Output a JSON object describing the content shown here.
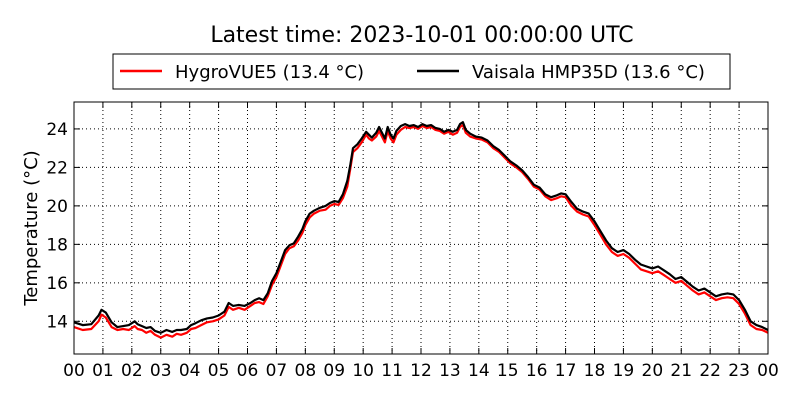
{
  "chart_data": {
    "type": "line",
    "title": "Latest time: 2023-10-01 00:00:00 UTC",
    "ylabel": "Temperature (°C)",
    "xlabel": "",
    "xlim": [
      0,
      24
    ],
    "ylim": [
      12.3,
      25.4
    ],
    "grid": true,
    "legend_position": "top",
    "x_ticks": [
      "00",
      "01",
      "02",
      "03",
      "04",
      "05",
      "06",
      "07",
      "08",
      "09",
      "10",
      "11",
      "12",
      "13",
      "14",
      "15",
      "16",
      "17",
      "18",
      "19",
      "20",
      "21",
      "22",
      "23",
      "00"
    ],
    "y_ticks": [
      14,
      16,
      18,
      20,
      22,
      24
    ],
    "series": [
      {
        "name": "HygroVUE5 (13.4 °C)",
        "color": "#ff0000",
        "points": [
          [
            0,
            13.7
          ],
          [
            0.3,
            13.55
          ],
          [
            0.6,
            13.6
          ],
          [
            0.85,
            14.0
          ],
          [
            0.95,
            14.35
          ],
          [
            1.1,
            14.2
          ],
          [
            1.3,
            13.7
          ],
          [
            1.5,
            13.55
          ],
          [
            1.7,
            13.6
          ],
          [
            1.9,
            13.55
          ],
          [
            2.1,
            13.75
          ],
          [
            2.2,
            13.6
          ],
          [
            2.35,
            13.55
          ],
          [
            2.5,
            13.4
          ],
          [
            2.65,
            13.5
          ],
          [
            2.8,
            13.3
          ],
          [
            3.0,
            13.15
          ],
          [
            3.2,
            13.3
          ],
          [
            3.4,
            13.2
          ],
          [
            3.55,
            13.35
          ],
          [
            3.7,
            13.3
          ],
          [
            3.9,
            13.4
          ],
          [
            4.05,
            13.6
          ],
          [
            4.2,
            13.65
          ],
          [
            4.4,
            13.8
          ],
          [
            4.6,
            13.95
          ],
          [
            4.8,
            14.0
          ],
          [
            5.0,
            14.1
          ],
          [
            5.2,
            14.3
          ],
          [
            5.35,
            14.75
          ],
          [
            5.5,
            14.6
          ],
          [
            5.7,
            14.7
          ],
          [
            5.9,
            14.6
          ],
          [
            6.1,
            14.8
          ],
          [
            6.25,
            14.95
          ],
          [
            6.4,
            15.0
          ],
          [
            6.55,
            14.9
          ],
          [
            6.7,
            15.3
          ],
          [
            6.85,
            15.9
          ],
          [
            7.0,
            16.3
          ],
          [
            7.15,
            16.9
          ],
          [
            7.3,
            17.5
          ],
          [
            7.45,
            17.8
          ],
          [
            7.6,
            17.9
          ],
          [
            7.75,
            18.2
          ],
          [
            7.9,
            18.6
          ],
          [
            8.0,
            19.0
          ],
          [
            8.15,
            19.4
          ],
          [
            8.3,
            19.6
          ],
          [
            8.5,
            19.75
          ],
          [
            8.7,
            19.8
          ],
          [
            8.85,
            20.0
          ],
          [
            9.0,
            20.1
          ],
          [
            9.15,
            20.05
          ],
          [
            9.3,
            20.4
          ],
          [
            9.45,
            21.0
          ],
          [
            9.55,
            21.9
          ],
          [
            9.65,
            22.8
          ],
          [
            9.8,
            23.0
          ],
          [
            9.95,
            23.3
          ],
          [
            10.1,
            23.7
          ],
          [
            10.2,
            23.5
          ],
          [
            10.3,
            23.4
          ],
          [
            10.45,
            23.6
          ],
          [
            10.55,
            23.9
          ],
          [
            10.65,
            23.6
          ],
          [
            10.75,
            23.3
          ],
          [
            10.85,
            23.9
          ],
          [
            10.95,
            23.5
          ],
          [
            11.05,
            23.3
          ],
          [
            11.15,
            23.7
          ],
          [
            11.3,
            23.95
          ],
          [
            11.45,
            24.1
          ],
          [
            11.6,
            24.05
          ],
          [
            11.75,
            24.1
          ],
          [
            11.9,
            24.0
          ],
          [
            12.05,
            24.15
          ],
          [
            12.2,
            24.05
          ],
          [
            12.35,
            24.1
          ],
          [
            12.5,
            23.95
          ],
          [
            12.65,
            23.9
          ],
          [
            12.8,
            23.75
          ],
          [
            12.95,
            23.85
          ],
          [
            13.1,
            23.7
          ],
          [
            13.25,
            23.8
          ],
          [
            13.35,
            24.1
          ],
          [
            13.45,
            24.2
          ],
          [
            13.55,
            23.8
          ],
          [
            13.7,
            23.6
          ],
          [
            13.9,
            23.5
          ],
          [
            14.1,
            23.45
          ],
          [
            14.3,
            23.3
          ],
          [
            14.5,
            23.0
          ],
          [
            14.7,
            22.8
          ],
          [
            14.9,
            22.5
          ],
          [
            15.1,
            22.2
          ],
          [
            15.3,
            22.0
          ],
          [
            15.5,
            21.75
          ],
          [
            15.7,
            21.4
          ],
          [
            15.9,
            21.0
          ],
          [
            16.1,
            20.85
          ],
          [
            16.3,
            20.5
          ],
          [
            16.5,
            20.3
          ],
          [
            16.7,
            20.4
          ],
          [
            16.85,
            20.5
          ],
          [
            17.0,
            20.45
          ],
          [
            17.2,
            20.0
          ],
          [
            17.4,
            19.7
          ],
          [
            17.6,
            19.55
          ],
          [
            17.8,
            19.45
          ],
          [
            18.0,
            19.0
          ],
          [
            18.2,
            18.5
          ],
          [
            18.4,
            18.0
          ],
          [
            18.6,
            17.6
          ],
          [
            18.8,
            17.4
          ],
          [
            19.0,
            17.5
          ],
          [
            19.2,
            17.3
          ],
          [
            19.4,
            17.0
          ],
          [
            19.6,
            16.7
          ],
          [
            19.8,
            16.6
          ],
          [
            20.0,
            16.5
          ],
          [
            20.2,
            16.6
          ],
          [
            20.4,
            16.4
          ],
          [
            20.6,
            16.2
          ],
          [
            20.8,
            16.0
          ],
          [
            21.0,
            16.1
          ],
          [
            21.2,
            15.85
          ],
          [
            21.4,
            15.6
          ],
          [
            21.6,
            15.4
          ],
          [
            21.8,
            15.5
          ],
          [
            22.0,
            15.3
          ],
          [
            22.2,
            15.1
          ],
          [
            22.4,
            15.2
          ],
          [
            22.6,
            15.25
          ],
          [
            22.8,
            15.2
          ],
          [
            23.0,
            14.9
          ],
          [
            23.2,
            14.4
          ],
          [
            23.4,
            13.8
          ],
          [
            23.6,
            13.6
          ],
          [
            23.8,
            13.55
          ],
          [
            24.0,
            13.4
          ]
        ]
      },
      {
        "name": "Vaisala HMP35D (13.6 °C)",
        "color": "#000000",
        "points": [
          [
            0,
            13.95
          ],
          [
            0.3,
            13.8
          ],
          [
            0.6,
            13.85
          ],
          [
            0.85,
            14.3
          ],
          [
            0.95,
            14.6
          ],
          [
            1.1,
            14.45
          ],
          [
            1.3,
            13.95
          ],
          [
            1.5,
            13.7
          ],
          [
            1.7,
            13.75
          ],
          [
            1.9,
            13.8
          ],
          [
            2.1,
            14.0
          ],
          [
            2.2,
            13.85
          ],
          [
            2.35,
            13.75
          ],
          [
            2.5,
            13.65
          ],
          [
            2.65,
            13.7
          ],
          [
            2.8,
            13.5
          ],
          [
            3.0,
            13.4
          ],
          [
            3.2,
            13.55
          ],
          [
            3.4,
            13.45
          ],
          [
            3.55,
            13.55
          ],
          [
            3.7,
            13.55
          ],
          [
            3.9,
            13.6
          ],
          [
            4.05,
            13.8
          ],
          [
            4.2,
            13.9
          ],
          [
            4.4,
            14.05
          ],
          [
            4.6,
            14.15
          ],
          [
            4.8,
            14.2
          ],
          [
            5.0,
            14.3
          ],
          [
            5.2,
            14.5
          ],
          [
            5.35,
            14.95
          ],
          [
            5.5,
            14.8
          ],
          [
            5.7,
            14.85
          ],
          [
            5.9,
            14.8
          ],
          [
            6.1,
            14.95
          ],
          [
            6.25,
            15.1
          ],
          [
            6.4,
            15.2
          ],
          [
            6.55,
            15.1
          ],
          [
            6.7,
            15.45
          ],
          [
            6.85,
            16.1
          ],
          [
            7.0,
            16.5
          ],
          [
            7.15,
            17.1
          ],
          [
            7.3,
            17.7
          ],
          [
            7.45,
            17.95
          ],
          [
            7.6,
            18.05
          ],
          [
            7.75,
            18.4
          ],
          [
            7.9,
            18.8
          ],
          [
            8.0,
            19.2
          ],
          [
            8.15,
            19.6
          ],
          [
            8.3,
            19.75
          ],
          [
            8.5,
            19.9
          ],
          [
            8.7,
            20.0
          ],
          [
            8.85,
            20.15
          ],
          [
            9.0,
            20.25
          ],
          [
            9.15,
            20.2
          ],
          [
            9.3,
            20.6
          ],
          [
            9.45,
            21.3
          ],
          [
            9.55,
            22.1
          ],
          [
            9.65,
            23.0
          ],
          [
            9.8,
            23.2
          ],
          [
            9.95,
            23.5
          ],
          [
            10.1,
            23.85
          ],
          [
            10.2,
            23.7
          ],
          [
            10.3,
            23.55
          ],
          [
            10.45,
            23.8
          ],
          [
            10.55,
            24.1
          ],
          [
            10.65,
            23.8
          ],
          [
            10.75,
            23.5
          ],
          [
            10.85,
            24.1
          ],
          [
            10.95,
            23.7
          ],
          [
            11.05,
            23.5
          ],
          [
            11.15,
            23.9
          ],
          [
            11.3,
            24.15
          ],
          [
            11.45,
            24.25
          ],
          [
            11.6,
            24.15
          ],
          [
            11.75,
            24.2
          ],
          [
            11.9,
            24.1
          ],
          [
            12.05,
            24.25
          ],
          [
            12.2,
            24.15
          ],
          [
            12.35,
            24.2
          ],
          [
            12.5,
            24.05
          ],
          [
            12.65,
            24.0
          ],
          [
            12.8,
            23.85
          ],
          [
            12.95,
            23.95
          ],
          [
            13.1,
            23.85
          ],
          [
            13.25,
            23.95
          ],
          [
            13.35,
            24.25
          ],
          [
            13.45,
            24.35
          ],
          [
            13.55,
            23.95
          ],
          [
            13.7,
            23.75
          ],
          [
            13.9,
            23.6
          ],
          [
            14.1,
            23.55
          ],
          [
            14.3,
            23.4
          ],
          [
            14.5,
            23.1
          ],
          [
            14.7,
            22.9
          ],
          [
            14.9,
            22.6
          ],
          [
            15.1,
            22.3
          ],
          [
            15.3,
            22.1
          ],
          [
            15.5,
            21.85
          ],
          [
            15.7,
            21.5
          ],
          [
            15.9,
            21.1
          ],
          [
            16.1,
            20.95
          ],
          [
            16.3,
            20.6
          ],
          [
            16.5,
            20.45
          ],
          [
            16.7,
            20.55
          ],
          [
            16.85,
            20.65
          ],
          [
            17.0,
            20.6
          ],
          [
            17.2,
            20.2
          ],
          [
            17.4,
            19.85
          ],
          [
            17.6,
            19.7
          ],
          [
            17.8,
            19.6
          ],
          [
            18.0,
            19.2
          ],
          [
            18.2,
            18.7
          ],
          [
            18.4,
            18.2
          ],
          [
            18.6,
            17.8
          ],
          [
            18.8,
            17.6
          ],
          [
            19.0,
            17.7
          ],
          [
            19.2,
            17.5
          ],
          [
            19.4,
            17.2
          ],
          [
            19.6,
            16.95
          ],
          [
            19.8,
            16.85
          ],
          [
            20.0,
            16.75
          ],
          [
            20.2,
            16.85
          ],
          [
            20.4,
            16.65
          ],
          [
            20.6,
            16.45
          ],
          [
            20.8,
            16.2
          ],
          [
            21.0,
            16.3
          ],
          [
            21.2,
            16.05
          ],
          [
            21.4,
            15.8
          ],
          [
            21.6,
            15.6
          ],
          [
            21.8,
            15.7
          ],
          [
            22.0,
            15.5
          ],
          [
            22.2,
            15.3
          ],
          [
            22.4,
            15.4
          ],
          [
            22.6,
            15.45
          ],
          [
            22.8,
            15.4
          ],
          [
            23.0,
            15.1
          ],
          [
            23.2,
            14.6
          ],
          [
            23.4,
            14.0
          ],
          [
            23.6,
            13.8
          ],
          [
            23.8,
            13.7
          ],
          [
            24.0,
            13.55
          ]
        ]
      }
    ]
  }
}
